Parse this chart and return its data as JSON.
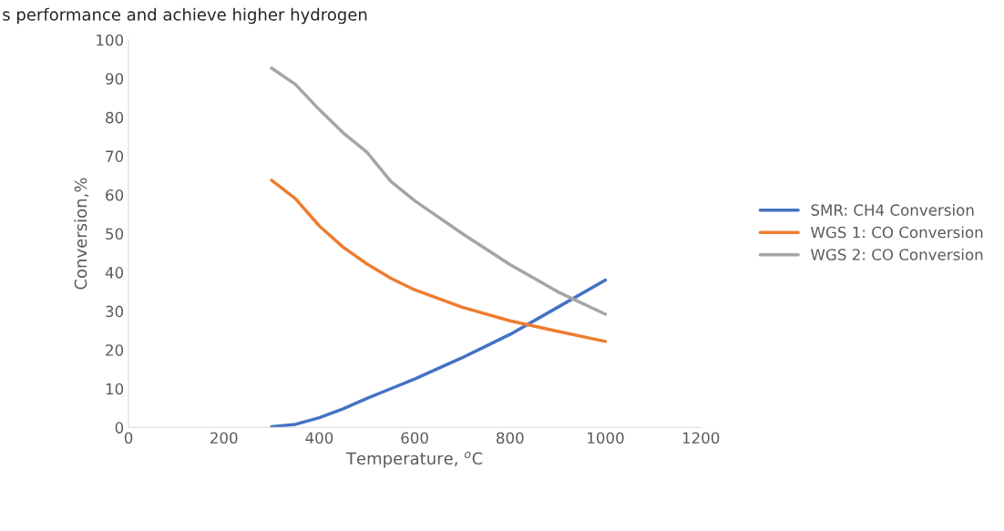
{
  "chart_data": {
    "type": "line",
    "xlabel": "Temperature, $^{o}$C",
    "ylabel": "Conversion,%",
    "annotations": [
      "s performance and achieve higher hydrogen"
    ],
    "x": [
      300,
      350,
      400,
      450,
      500,
      550,
      600,
      700,
      800,
      900,
      1000
    ],
    "series": [
      {
        "name": "SMR: CH4 Conversion",
        "color": "#4472c4",
        "values": [
          0.2,
          0.8,
          2.5,
          4.8,
          7.5,
          10,
          12.5,
          18,
          24,
          31,
          38
        ]
      },
      {
        "name": "WGS 1: CO Conversion",
        "color": "#ed7d31",
        "values": [
          63.8,
          59,
          52,
          46.5,
          42.2,
          38.5,
          35.5,
          31,
          27.5,
          24.8,
          22.2
        ]
      },
      {
        "name": "WGS 2: CO Conversion",
        "color": "#a5a5a5",
        "values": [
          92.7,
          88.5,
          82,
          76,
          71,
          63.5,
          58.5,
          50,
          42,
          35,
          29.2
        ]
      }
    ],
    "xlim": [
      0,
      1200
    ],
    "xticks": [
      0,
      200,
      400,
      600,
      800,
      1000,
      1200
    ],
    "ylim": [
      0,
      100
    ],
    "yticks": [
      0,
      10,
      20,
      30,
      40,
      50,
      60,
      70,
      80,
      90,
      100
    ],
    "grid": false,
    "legend": "right",
    "marker": "none",
    "line_style": "solid"
  }
}
